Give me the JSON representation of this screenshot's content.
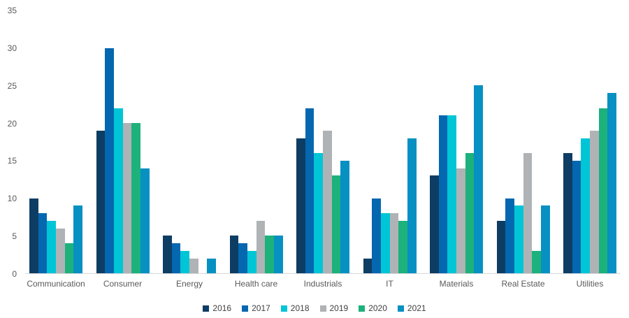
{
  "chart_data": {
    "type": "bar",
    "title": "",
    "xlabel": "",
    "ylabel": "",
    "categories": [
      "Communication",
      "Consumer",
      "Energy",
      "Health care",
      "Industrials",
      "IT",
      "Materials",
      "Real Estate",
      "Utilities"
    ],
    "series": [
      {
        "name": "2016",
        "color": "#0e3d64",
        "values": [
          10,
          19,
          5,
          5,
          18,
          2,
          13,
          7,
          16
        ]
      },
      {
        "name": "2017",
        "color": "#0467b0",
        "values": [
          8,
          30,
          4,
          4,
          22,
          10,
          21,
          10,
          15
        ]
      },
      {
        "name": "2018",
        "color": "#00c5d6",
        "values": [
          7,
          22,
          3,
          3,
          16,
          8,
          21,
          9,
          18
        ]
      },
      {
        "name": "2019",
        "color": "#afb3b5",
        "values": [
          6,
          20,
          2,
          7,
          19,
          8,
          14,
          16,
          19
        ]
      },
      {
        "name": "2020",
        "color": "#1db17c",
        "values": [
          4,
          20,
          0,
          5,
          13,
          7,
          16,
          3,
          22
        ]
      },
      {
        "name": "2021",
        "color": "#0790c2",
        "values": [
          9,
          14,
          2,
          5,
          15,
          18,
          25,
          9,
          24
        ]
      }
    ],
    "ylim": [
      0,
      35
    ],
    "yticks": [
      0,
      5,
      10,
      15,
      20,
      25,
      30,
      35
    ],
    "grid": false,
    "legend_position": "bottom",
    "axis_line_color": "#d9d9d9",
    "tick_label_color": "#595959",
    "legend_label_color": "#404040",
    "background_color": "#ffffff"
  }
}
